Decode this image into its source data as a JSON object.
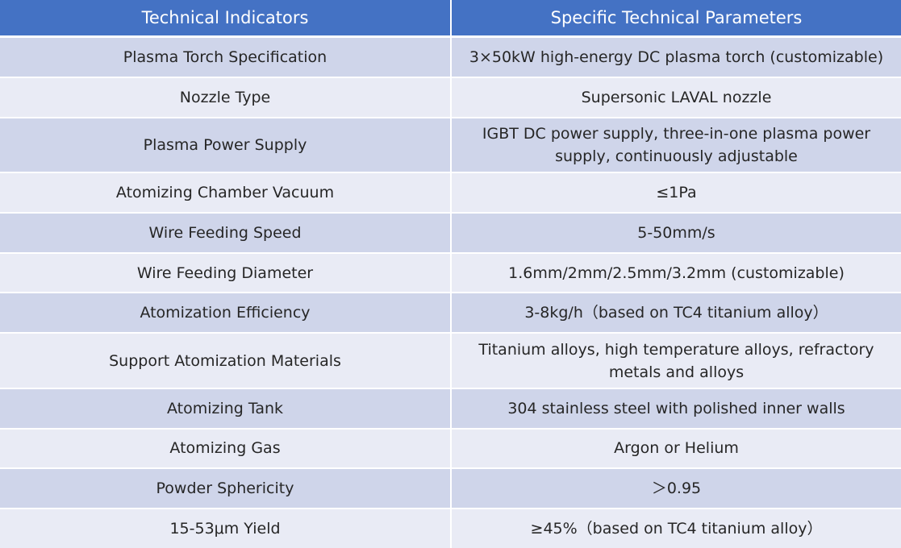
{
  "table": {
    "header": {
      "col1": "Technical Indicators",
      "col2": "Specific Technical Parameters"
    },
    "rows": [
      {
        "indicator": "Plasma Torch Specification",
        "parameter": "3×50kW high-energy DC plasma torch (customizable)"
      },
      {
        "indicator": "Nozzle Type",
        "parameter": "Supersonic LAVAL nozzle"
      },
      {
        "indicator": "Plasma Power Supply",
        "parameter": "IGBT DC power supply, three-in-one plasma power supply, continuously adjustable"
      },
      {
        "indicator": "Atomizing Chamber Vacuum",
        "parameter": "≤1Pa"
      },
      {
        "indicator": "Wire Feeding Speed",
        "parameter": "5-50mm/s"
      },
      {
        "indicator": "Wire Feeding Diameter",
        "parameter": "1.6mm/2mm/2.5mm/3.2mm (customizable)"
      },
      {
        "indicator": "Atomization Efficiency",
        "parameter": "3-8kg/h（based on TC4 titanium alloy）"
      },
      {
        "indicator": "Support Atomization Materials",
        "parameter": "Titanium alloys, high temperature alloys, refractory metals and alloys"
      },
      {
        "indicator": "Atomizing Tank",
        "parameter": "304 stainless steel with polished inner walls"
      },
      {
        "indicator": "Atomizing Gas",
        "parameter": "Argon or Helium"
      },
      {
        "indicator": "Powder Sphericity",
        "parameter": "＞0.95"
      },
      {
        "indicator": "15-53μm Yield",
        "parameter": "≥45%（based on TC4 titanium alloy）"
      }
    ]
  }
}
